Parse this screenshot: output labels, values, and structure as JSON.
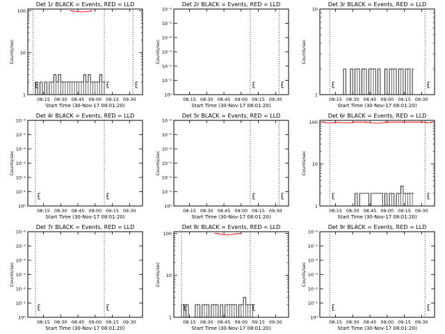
{
  "page": {
    "background": "#ffffff",
    "axis_color": "#000000",
    "events_color": "#000000",
    "lld_color": "#ff0000"
  },
  "chart_data": [
    {
      "type": "line",
      "title": "Det 1r BLACK = Events, RED = LLD",
      "xlabel": "Start Time (30-Nov-17 08:01:20)",
      "ylabel": "Counts/sec",
      "xticks": [
        "08:15",
        "08:30",
        "08:45",
        "09:00",
        "09:15",
        "09:30"
      ],
      "xlim": [
        "08:01:20",
        "09:41:20"
      ],
      "scale": "log",
      "yticks": [
        "1",
        "10",
        "100"
      ],
      "ylim": [
        1,
        110
      ],
      "vlines": [
        "08:06:00",
        "09:08:00",
        "09:33:00"
      ],
      "series": [
        {
          "color": "#000000",
          "x": [
            "08:06",
            "08:08",
            "08:10",
            "08:12",
            "08:14",
            "08:16",
            "08:18",
            "08:20",
            "08:22",
            "08:24",
            "08:26",
            "08:28",
            "08:30",
            "08:32",
            "08:34",
            "08:36",
            "08:38",
            "08:40",
            "08:42",
            "08:44",
            "08:46",
            "08:48",
            "08:50",
            "08:52",
            "08:54",
            "08:56",
            "08:58",
            "09:00",
            "09:02",
            "09:04",
            "09:06",
            "09:08"
          ],
          "values": [
            1,
            2,
            1,
            2,
            1,
            2,
            1,
            2,
            2,
            3,
            2,
            3,
            2,
            2,
            2,
            2,
            2,
            2,
            2,
            2,
            2,
            2,
            3,
            2,
            3,
            2,
            2,
            2,
            2,
            3,
            2,
            2
          ]
        },
        {
          "color": "#ff0000",
          "x": [
            "08:38",
            "08:41",
            "08:44",
            "08:47",
            "08:50",
            "08:53",
            "08:56"
          ],
          "values": [
            100,
            97,
            95,
            94,
            95,
            97,
            100
          ]
        }
      ]
    },
    {
      "type": "line",
      "title": "Det 2r BLACK = Events, RED = LLD",
      "xlabel": "Start Time (30-Nov-17 08:01:20)",
      "ylabel": "Counts/sec",
      "xticks": [
        "08:15",
        "08:30",
        "08:45",
        "09:00",
        "09:15",
        "09:30"
      ],
      "xlim": [
        "08:01:20",
        "09:41:20"
      ],
      "scale": "log",
      "yticks": [
        "10⁰",
        "10⁻¹",
        "10⁻²",
        "10⁻³",
        "10⁻⁴",
        "10⁻⁵",
        "10⁻⁶"
      ],
      "vlines": [
        "09:08:00",
        "09:33:00"
      ],
      "series": []
    },
    {
      "type": "line",
      "title": "Det 3r BLACK = Events, RED = LLD",
      "xlabel": "Start Time (30-Nov-17 08:01:20)",
      "ylabel": "Counts/sec",
      "xticks": [
        "08:15",
        "08:30",
        "08:45",
        "09:00",
        "09:15",
        "09:30"
      ],
      "xlim": [
        "08:01:20",
        "09:41:20"
      ],
      "scale": "log",
      "yticks": [
        "1",
        "10"
      ],
      "ylim": [
        1,
        10
      ],
      "vlines": [
        "08:10:00",
        "09:33:00"
      ],
      "series": [
        {
          "color": "#000000",
          "x": [
            "08:20",
            "08:22",
            "08:24",
            "08:26",
            "08:28",
            "08:30",
            "08:32",
            "08:34",
            "08:36",
            "08:38",
            "08:40",
            "08:42",
            "08:44",
            "08:46",
            "08:48",
            "08:50",
            "08:52",
            "08:54",
            "08:56",
            "08:58",
            "09:00",
            "09:02",
            "09:04",
            "09:06",
            "09:08",
            "09:10",
            "09:12",
            "09:14",
            "09:16",
            "09:18",
            "09:20",
            "09:22"
          ],
          "values": [
            1,
            2,
            1,
            1,
            2,
            1,
            2,
            2,
            1,
            2,
            2,
            1,
            2,
            2,
            2,
            1,
            2,
            1,
            1,
            2,
            1,
            2,
            2,
            2,
            1,
            2,
            2,
            1,
            2,
            2,
            1,
            2
          ]
        }
      ]
    },
    {
      "type": "line",
      "title": "Det 4r BLACK = Events, RED = LLD",
      "xlabel": "Start Time (30-Nov-17 08:01:20)",
      "ylabel": "Counts/sec",
      "xticks": [
        "08:15",
        "08:30",
        "08:45",
        "09:00",
        "09:15",
        "09:30"
      ],
      "xlim": [
        "08:01:20",
        "09:41:20"
      ],
      "scale": "log",
      "yticks": [
        "10⁰",
        "10⁻¹",
        "10⁻²",
        "10⁻³",
        "10⁻⁴",
        "10⁻⁵",
        "10⁻⁶"
      ],
      "vlines": [
        "08:08:00",
        "09:08:00"
      ],
      "series": []
    },
    {
      "type": "line",
      "title": "Det 5r BLACK = Events, RED = LLD",
      "xlabel": "Start Time (30-Nov-17 08:01:20)",
      "ylabel": "Counts/sec",
      "xticks": [
        "08:15",
        "08:30",
        "08:45",
        "09:00",
        "09:15",
        "09:30"
      ],
      "xlim": [
        "08:01:20",
        "09:41:20"
      ],
      "scale": "log",
      "yticks": [
        "10⁰",
        "10⁻¹",
        "10⁻²",
        "10⁻³",
        "10⁻⁴",
        "10⁻⁵",
        "10⁻⁶"
      ],
      "vlines": [
        "09:08:00",
        "09:33:00"
      ],
      "series": []
    },
    {
      "type": "line",
      "title": "Det 6r BLACK = Events, RED = LLD",
      "xlabel": "Start Time (30-Nov-17 08:01:20)",
      "ylabel": "Counts/sec",
      "xticks": [
        "08:15",
        "08:30",
        "08:45",
        "09:00",
        "09:15",
        "09:30"
      ],
      "xlim": [
        "08:01:20",
        "09:41:20"
      ],
      "scale": "log",
      "yticks": [
        "1",
        "10",
        "100"
      ],
      "ylim": [
        1,
        110
      ],
      "vlines": [
        "08:10:00",
        "09:33:00"
      ],
      "series": [
        {
          "color": "#000000",
          "x": [
            "08:30",
            "08:32",
            "08:34",
            "08:36",
            "08:44",
            "08:46",
            "08:56",
            "08:58",
            "09:00",
            "09:02",
            "09:04",
            "09:06",
            "09:08",
            "09:10",
            "09:12",
            "09:14",
            "09:16",
            "09:18",
            "09:20",
            "09:22"
          ],
          "values": [
            1,
            2,
            1,
            2,
            1,
            2,
            1,
            2,
            1,
            2,
            2,
            1,
            2,
            2,
            3,
            2,
            2,
            2,
            2,
            2
          ]
        },
        {
          "color": "#ff0000",
          "x": [
            "08:02",
            "08:06",
            "08:10",
            "08:14",
            "08:18",
            "08:22",
            "08:26",
            "08:30",
            "08:34",
            "08:38",
            "08:42",
            "08:46",
            "08:50",
            "08:54",
            "08:58",
            "09:02",
            "09:06",
            "09:10",
            "09:14",
            "09:18",
            "09:22",
            "09:26",
            "09:30",
            "09:34",
            "09:38"
          ],
          "values": [
            100,
            95,
            96,
            98,
            97,
            96,
            96,
            100,
            100,
            100,
            97,
            95,
            94,
            97,
            100,
            100,
            100,
            100,
            100,
            100,
            100,
            100,
            100,
            96,
            100
          ]
        }
      ]
    },
    {
      "type": "line",
      "title": "Det 7r BLACK = Events, RED = LLD",
      "xlabel": "Start Time (30-Nov-17 08:01:20)",
      "ylabel": "Counts/sec",
      "xticks": [
        "08:15",
        "08:30",
        "08:45",
        "09:00",
        "09:15",
        "09:30"
      ],
      "xlim": [
        "08:01:20",
        "09:41:20"
      ],
      "scale": "log",
      "yticks": [
        "10⁰",
        "10⁻¹",
        "10⁻²",
        "10⁻³",
        "10⁻⁴",
        "10⁻⁵",
        "10⁻⁶"
      ],
      "vlines": [
        "08:08:00",
        "09:08:00"
      ],
      "series": []
    },
    {
      "type": "line",
      "title": "Det 8r BLACK = Events, RED = LLD",
      "xlabel": "Start Time (30-Nov-17 08:01:20)",
      "ylabel": "Counts/sec",
      "xticks": [
        "08:15",
        "08:30",
        "08:45",
        "09:00",
        "09:15",
        "09:30"
      ],
      "xlim": [
        "08:01:20",
        "09:41:20"
      ],
      "scale": "log",
      "yticks": [
        "1",
        "10",
        "100"
      ],
      "ylim": [
        1,
        110
      ],
      "vlines": [
        "08:08:00",
        "09:08:00"
      ],
      "series": [
        {
          "color": "#000000",
          "x": [
            "08:08",
            "08:10",
            "08:12",
            "08:14",
            "08:16",
            "08:18",
            "08:20",
            "08:22",
            "08:24",
            "08:26",
            "08:28",
            "08:30",
            "08:32",
            "08:34",
            "08:36",
            "08:38",
            "08:40",
            "08:42",
            "08:44",
            "08:46",
            "08:48",
            "08:50",
            "08:52",
            "08:54",
            "08:56",
            "08:58",
            "09:00",
            "09:02",
            "09:04",
            "09:06",
            "09:08",
            "09:10"
          ],
          "values": [
            2,
            1,
            2,
            1,
            1,
            1,
            2,
            2,
            1,
            2,
            2,
            2,
            1,
            2,
            2,
            2,
            1,
            2,
            1,
            2,
            2,
            2,
            2,
            2,
            1,
            2,
            2,
            3,
            2,
            2,
            2,
            2
          ]
        },
        {
          "color": "#ff0000",
          "x": [
            "08:37",
            "08:40",
            "08:43",
            "08:46",
            "08:49",
            "08:52",
            "08:55",
            "08:58"
          ],
          "values": [
            100,
            97,
            94,
            93,
            94,
            96,
            98,
            100
          ]
        }
      ]
    },
    {
      "type": "line",
      "title": "Det 9r BLACK = Events, RED = LLD",
      "xlabel": "Start Time (30-Nov-17 08:01:20)",
      "ylabel": "Counts/sec",
      "xticks": [
        "08:15",
        "08:30",
        "08:45",
        "09:00",
        "09:15",
        "09:30"
      ],
      "xlim": [
        "08:01:20",
        "09:41:20"
      ],
      "scale": "log",
      "yticks": [
        "10⁰",
        "10⁻¹",
        "10⁻²",
        "10⁻³",
        "10⁻⁴",
        "10⁻⁵",
        "10⁻⁶"
      ],
      "vlines": [
        "08:10:00",
        "09:33:00"
      ],
      "series": []
    }
  ]
}
